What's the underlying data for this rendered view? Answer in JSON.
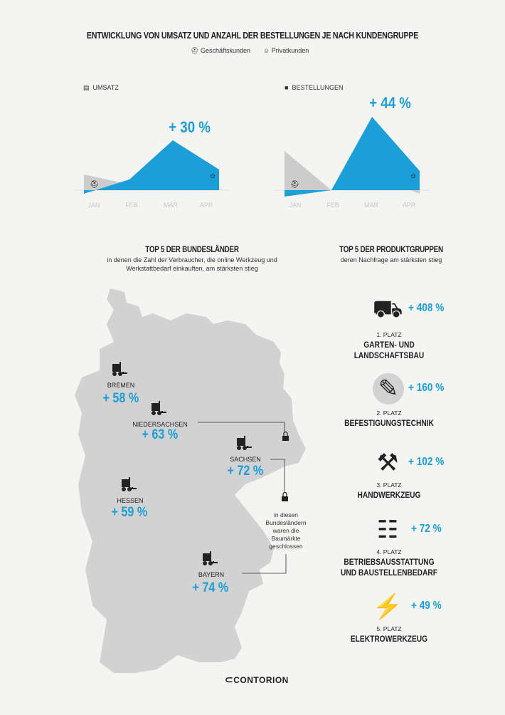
{
  "header": {
    "title": "ENTWICKLUNG VON UMSATZ UND ANZAHL DER BESTELLUNGEN JE NACH KUNDENGRUPPE",
    "legend": [
      {
        "label": "Geschäftskunden",
        "icon": "helmet-icon"
      },
      {
        "label": "Privatkunden",
        "icon": "face-icon"
      }
    ]
  },
  "chart_data": [
    {
      "type": "area",
      "title": "UMSATZ",
      "categories": [
        "JAN",
        "FEB",
        "MAR",
        "APR"
      ],
      "series": [
        {
          "name": "Geschäftskunden",
          "values": [
            22,
            8,
            1,
            7
          ],
          "color": "#cccccc"
        },
        {
          "name": "Privatkunden",
          "values": [
            -5,
            15,
            70,
            29
          ],
          "color": "#1c9ed9"
        }
      ],
      "annotation": "+ 30 %",
      "grid": false
    },
    {
      "type": "area",
      "title": "BESTELLUNGEN",
      "categories": [
        "JAN",
        "FEB",
        "MAR",
        "APR"
      ],
      "series": [
        {
          "name": "Geschäftskunden",
          "values": [
            55,
            0,
            20,
            -5
          ],
          "color": "#cccccc"
        },
        {
          "name": "Privatkunden",
          "values": [
            -9,
            0,
            103,
            27
          ],
          "color": "#1c9ed9"
        }
      ],
      "annotation": "+ 44 %",
      "grid": false
    }
  ],
  "states": {
    "title": "TOP 5 DER BUNDESLÄNDER",
    "subtitle_1": "in denen die Zahl der Verbraucher, die online Werkzeug und",
    "subtitle_2": "Werkstattbedarf einkauften, am stärksten stieg",
    "items": [
      {
        "name": "BREMEN",
        "value": "+ 58 %"
      },
      {
        "name": "NIEDERSACHSEN",
        "value": "+ 63 %"
      },
      {
        "name": "SACHSEN",
        "value": "+ 72 %"
      },
      {
        "name": "HESSEN",
        "value": "+ 59 %"
      },
      {
        "name": "BAYERN",
        "value": "+ 74 %"
      }
    ],
    "note": [
      "in diesen",
      "Bundesländern",
      "waren die",
      "Baumärkte",
      "geschlossen"
    ]
  },
  "products": {
    "title": "TOP 5 DER PRODUKTGRUPPEN",
    "subtitle": "deren Nachfrage am stärksten stieg",
    "items": [
      {
        "rank": "1. PLATZ",
        "name_1": "GARTEN- UND",
        "name_2": "LANDSCHAFTSBAU",
        "value": "+ 408 %",
        "icon": "wheelbarrow-icon"
      },
      {
        "rank": "2. PLATZ",
        "name_1": "BEFESTIGUNGSTECHNIK",
        "name_2": "",
        "value": "+ 160 %",
        "icon": "screw-icon"
      },
      {
        "rank": "3. PLATZ",
        "name_1": "HANDWERKZEUG",
        "name_2": "",
        "value": "+ 102 %",
        "icon": "hammer-wrench-icon"
      },
      {
        "rank": "4. PLATZ",
        "name_1": "BETRIEBSAUSSTATTUNG",
        "name_2": "UND BAUSTELLENBEDARF",
        "value": "+ 72 %",
        "icon": "ladder-icon"
      },
      {
        "rank": "5. PLATZ",
        "name_1": "ELEKTROWERKZEUG",
        "name_2": "",
        "value": "+ 49 %",
        "icon": "drill-icon"
      }
    ]
  },
  "logo": "CONTORION"
}
